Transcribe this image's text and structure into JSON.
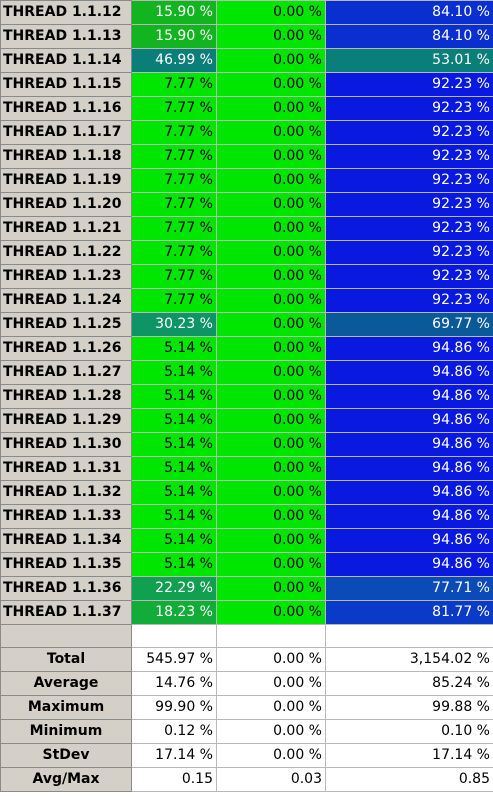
{
  "colors": {
    "header_bg": "#d4d0c8",
    "green": "#00e600",
    "blue": "#0a19e0",
    "teal": "#0a7f7a",
    "mid_green": "#14a052",
    "steel_blue": "#0a3fb5"
  },
  "rows": [
    {
      "name": "THREAD 1.1.12",
      "c1": "15.90 %",
      "c2": "0.00 %",
      "c3": "84.10 %",
      "c1_color": "#12b520",
      "c3_color": "#0a2fd0"
    },
    {
      "name": "THREAD 1.1.13",
      "c1": "15.90 %",
      "c2": "0.00 %",
      "c3": "84.10 %",
      "c1_color": "#12b520",
      "c3_color": "#0a2fd0"
    },
    {
      "name": "THREAD 1.1.14",
      "c1": "46.99 %",
      "c2": "0.00 %",
      "c3": "53.01 %",
      "c1_color": "#0a7f7a",
      "c3_color": "#0a7f7a"
    },
    {
      "name": "THREAD 1.1.15",
      "c1": "7.77 %",
      "c2": "0.00 %",
      "c3": "92.23 %",
      "c1_color": "#00e600",
      "c3_color": "#0a19e0"
    },
    {
      "name": "THREAD 1.1.16",
      "c1": "7.77 %",
      "c2": "0.00 %",
      "c3": "92.23 %",
      "c1_color": "#00e600",
      "c3_color": "#0a19e0"
    },
    {
      "name": "THREAD 1.1.17",
      "c1": "7.77 %",
      "c2": "0.00 %",
      "c3": "92.23 %",
      "c1_color": "#00e600",
      "c3_color": "#0a19e0"
    },
    {
      "name": "THREAD 1.1.18",
      "c1": "7.77 %",
      "c2": "0.00 %",
      "c3": "92.23 %",
      "c1_color": "#00e600",
      "c3_color": "#0a19e0"
    },
    {
      "name": "THREAD 1.1.19",
      "c1": "7.77 %",
      "c2": "0.00 %",
      "c3": "92.23 %",
      "c1_color": "#00e600",
      "c3_color": "#0a19e0"
    },
    {
      "name": "THREAD 1.1.20",
      "c1": "7.77 %",
      "c2": "0.00 %",
      "c3": "92.23 %",
      "c1_color": "#00e600",
      "c3_color": "#0a19e0"
    },
    {
      "name": "THREAD 1.1.21",
      "c1": "7.77 %",
      "c2": "0.00 %",
      "c3": "92.23 %",
      "c1_color": "#00e600",
      "c3_color": "#0a19e0"
    },
    {
      "name": "THREAD 1.1.22",
      "c1": "7.77 %",
      "c2": "0.00 %",
      "c3": "92.23 %",
      "c1_color": "#00e600",
      "c3_color": "#0a19e0"
    },
    {
      "name": "THREAD 1.1.23",
      "c1": "7.77 %",
      "c2": "0.00 %",
      "c3": "92.23 %",
      "c1_color": "#00e600",
      "c3_color": "#0a19e0"
    },
    {
      "name": "THREAD 1.1.24",
      "c1": "7.77 %",
      "c2": "0.00 %",
      "c3": "92.23 %",
      "c1_color": "#00e600",
      "c3_color": "#0a19e0"
    },
    {
      "name": "THREAD 1.1.25",
      "c1": "30.23 %",
      "c2": "0.00 %",
      "c3": "69.77 %",
      "c1_color": "#0e9565",
      "c3_color": "#0a5a9a"
    },
    {
      "name": "THREAD 1.1.26",
      "c1": "5.14 %",
      "c2": "0.00 %",
      "c3": "94.86 %",
      "c1_color": "#00e600",
      "c3_color": "#0a19e0"
    },
    {
      "name": "THREAD 1.1.27",
      "c1": "5.14 %",
      "c2": "0.00 %",
      "c3": "94.86 %",
      "c1_color": "#00e600",
      "c3_color": "#0a19e0"
    },
    {
      "name": "THREAD 1.1.28",
      "c1": "5.14 %",
      "c2": "0.00 %",
      "c3": "94.86 %",
      "c1_color": "#00e600",
      "c3_color": "#0a19e0"
    },
    {
      "name": "THREAD 1.1.29",
      "c1": "5.14 %",
      "c2": "0.00 %",
      "c3": "94.86 %",
      "c1_color": "#00e600",
      "c3_color": "#0a19e0"
    },
    {
      "name": "THREAD 1.1.30",
      "c1": "5.14 %",
      "c2": "0.00 %",
      "c3": "94.86 %",
      "c1_color": "#00e600",
      "c3_color": "#0a19e0"
    },
    {
      "name": "THREAD 1.1.31",
      "c1": "5.14 %",
      "c2": "0.00 %",
      "c3": "94.86 %",
      "c1_color": "#00e600",
      "c3_color": "#0a19e0"
    },
    {
      "name": "THREAD 1.1.32",
      "c1": "5.14 %",
      "c2": "0.00 %",
      "c3": "94.86 %",
      "c1_color": "#00e600",
      "c3_color": "#0a19e0"
    },
    {
      "name": "THREAD 1.1.33",
      "c1": "5.14 %",
      "c2": "0.00 %",
      "c3": "94.86 %",
      "c1_color": "#00e600",
      "c3_color": "#0a19e0"
    },
    {
      "name": "THREAD 1.1.34",
      "c1": "5.14 %",
      "c2": "0.00 %",
      "c3": "94.86 %",
      "c1_color": "#00e600",
      "c3_color": "#0a19e0"
    },
    {
      "name": "THREAD 1.1.35",
      "c1": "5.14 %",
      "c2": "0.00 %",
      "c3": "94.86 %",
      "c1_color": "#00e600",
      "c3_color": "#0a19e0"
    },
    {
      "name": "THREAD 1.1.36",
      "c1": "22.29 %",
      "c2": "0.00 %",
      "c3": "77.71 %",
      "c1_color": "#11a050",
      "c3_color": "#0a4bb8"
    },
    {
      "name": "THREAD 1.1.37",
      "c1": "18.23 %",
      "c2": "0.00 %",
      "c3": "81.77 %",
      "c1_color": "#12ac38",
      "c3_color": "#0a3bc8"
    }
  ],
  "c2_color": "#00e600",
  "summary": [
    {
      "label": "Total",
      "c1": "545.97 %",
      "c2": "0.00 %",
      "c3": "3,154.02 %"
    },
    {
      "label": "Average",
      "c1": "14.76 %",
      "c2": "0.00 %",
      "c3": "85.24 %"
    },
    {
      "label": "Maximum",
      "c1": "99.90 %",
      "c2": "0.00 %",
      "c3": "99.88 %"
    },
    {
      "label": "Minimum",
      "c1": "0.12 %",
      "c2": "0.00 %",
      "c3": "0.10 %"
    },
    {
      "label": "StDev",
      "c1": "17.14 %",
      "c2": "0.00 %",
      "c3": "17.14 %"
    },
    {
      "label": "Avg/Max",
      "c1": "0.15",
      "c2": "0.03",
      "c3": "0.85"
    }
  ]
}
